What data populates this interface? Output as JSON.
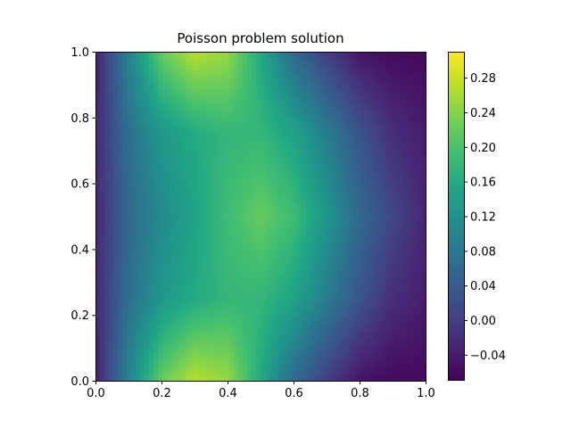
{
  "chart_data": {
    "type": "heatmap",
    "title": "Poisson problem solution",
    "xlabel": "",
    "ylabel": "",
    "xlim": [
      0.0,
      1.0
    ],
    "ylim": [
      0.0,
      1.0
    ],
    "x_ticks": [
      "0.0",
      "0.2",
      "0.4",
      "0.6",
      "0.8",
      "1.0"
    ],
    "y_ticks": [
      "0.0",
      "0.2",
      "0.4",
      "0.6",
      "0.8",
      "1.0"
    ],
    "colormap": "viridis",
    "colorbar": {
      "vmin": -0.07,
      "vmax": 0.31,
      "ticks": [
        -0.04,
        0.0,
        0.04,
        0.08,
        0.12,
        0.16,
        0.2,
        0.24,
        0.28
      ],
      "tick_labels": [
        "−0.04",
        "0.00",
        "0.04",
        "0.08",
        "0.12",
        "0.16",
        "0.20",
        "0.24",
        "0.28"
      ]
    },
    "grid": false,
    "field_samples": {
      "description_of_axes": "rows are y from 0.0 to 1.0, columns are x from 0.0 to 1.0",
      "x": [
        0.0,
        0.1,
        0.2,
        0.3,
        0.4,
        0.5,
        0.6,
        0.7,
        0.8,
        0.9,
        1.0
      ],
      "y": [
        0.0,
        0.25,
        0.5,
        0.75,
        1.0
      ],
      "values": [
        [
          -0.04,
          0.1,
          0.22,
          0.27,
          0.25,
          0.16,
          0.06,
          0.0,
          -0.05,
          -0.06,
          -0.06
        ],
        [
          -0.03,
          0.07,
          0.13,
          0.16,
          0.18,
          0.18,
          0.15,
          0.09,
          0.03,
          -0.02,
          -0.04
        ],
        [
          -0.03,
          0.06,
          0.11,
          0.15,
          0.19,
          0.22,
          0.19,
          0.13,
          0.06,
          0.01,
          -0.03
        ],
        [
          -0.03,
          0.07,
          0.13,
          0.16,
          0.18,
          0.18,
          0.15,
          0.09,
          0.03,
          -0.02,
          -0.04
        ],
        [
          -0.04,
          0.1,
          0.22,
          0.27,
          0.25,
          0.16,
          0.06,
          0.0,
          -0.05,
          -0.06,
          -0.06
        ]
      ]
    }
  }
}
